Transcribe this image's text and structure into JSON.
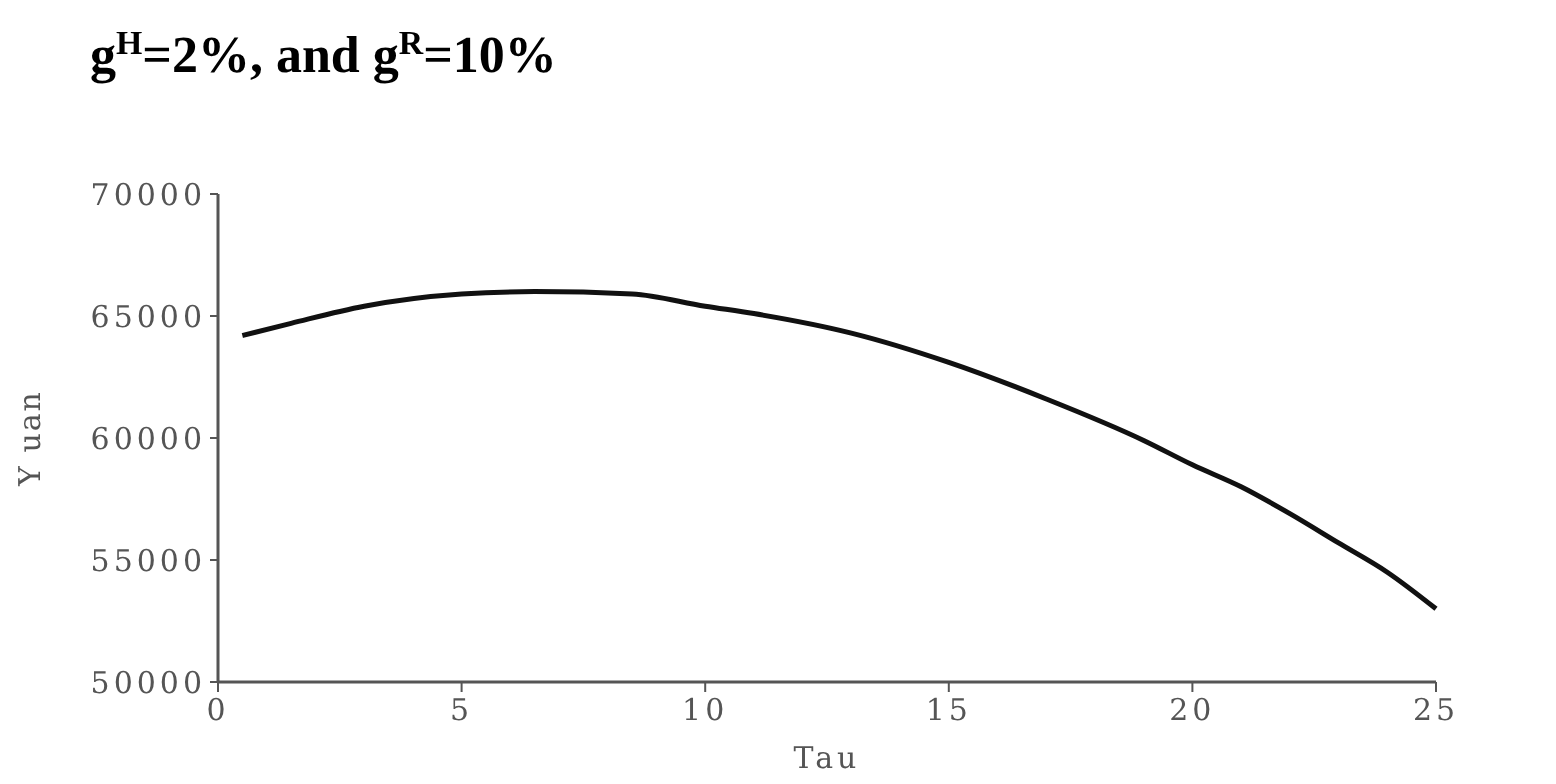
{
  "chart_data": {
    "type": "line",
    "title": "g$^{H}$=2%, and g$^{R}$=10%",
    "xlabel": "Tau",
    "ylabel": "Y uan",
    "x": [
      0.5,
      1.5,
      3,
      5,
      6.5,
      8.5,
      10,
      11,
      13,
      15,
      17,
      19,
      20,
      21,
      22,
      23,
      24,
      25
    ],
    "series": [
      {
        "color": "#111111",
        "values": [
          64200,
          64700,
          65400,
          65900,
          66000,
          65900,
          65400,
          65100,
          64300,
          63100,
          61600,
          59900,
          58900,
          58000,
          56900,
          55700,
          54500,
          53000
        ]
      }
    ],
    "xlim": [
      0,
      25
    ],
    "xticks": [
      0,
      5,
      10,
      15,
      20,
      25
    ],
    "ylim": [
      50000,
      70000
    ],
    "yticks": [
      50000,
      55000,
      60000,
      65000,
      70000
    ],
    "marker": "none",
    "line_style": "solid"
  }
}
